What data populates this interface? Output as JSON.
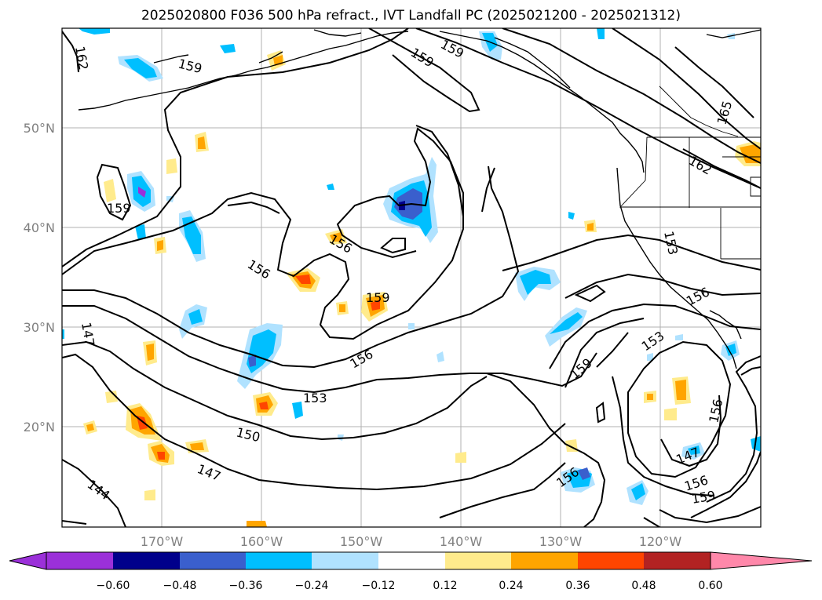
{
  "title": "2025020800 F036 500 hPa refract., IVT Landfall PC (2025021200 - 2025021312)",
  "map": {
    "lat_labels": [
      "50°N",
      "40°N",
      "30°N",
      "20°N"
    ],
    "lon_labels": [
      "170°W",
      "160°W",
      "150°W",
      "140°W",
      "130°W",
      "120°W"
    ],
    "extent": {
      "lon_min": -180,
      "lon_max": -110,
      "lat_min": 10,
      "lat_max": 60
    },
    "grid": true
  },
  "contour_labels": [
    "162",
    "159",
    "159",
    "159",
    "159",
    "156",
    "156",
    "159",
    "165",
    "162",
    "153",
    "156",
    "147",
    "156",
    "153",
    "159",
    "150",
    "147",
    "144",
    "156",
    "156",
    "159",
    "147",
    "156",
    "153"
  ],
  "colorbar": {
    "ticks": [
      "−0.60",
      "−0.48",
      "−0.36",
      "−0.24",
      "−0.12",
      "0.12",
      "0.24",
      "0.36",
      "0.48",
      "0.60"
    ],
    "colors": [
      "#9b30d9",
      "#00008b",
      "#3a5fcd",
      "#00bfff",
      "#b0e2ff",
      "#ffffff",
      "#ffeb8c",
      "#ffa500",
      "#ff4500",
      "#b22222",
      "#ff88aa"
    ]
  }
}
